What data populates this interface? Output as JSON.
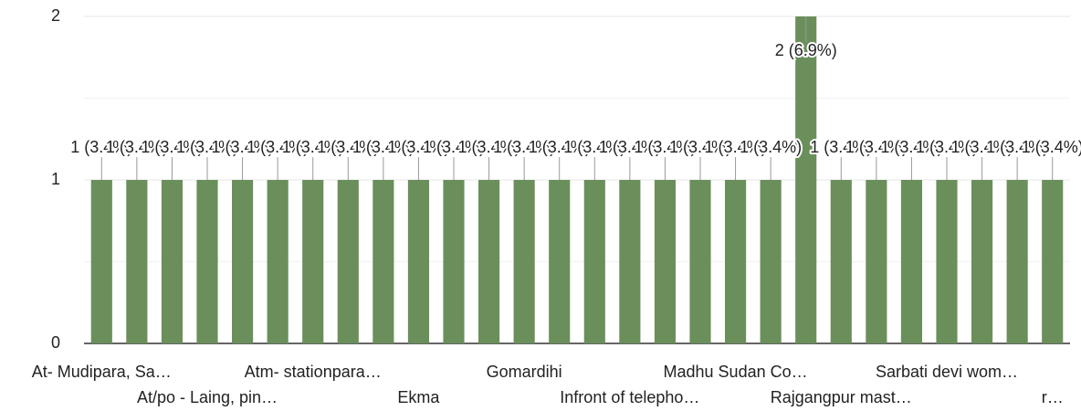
{
  "chart_data": {
    "type": "bar",
    "categories": [
      "At- Mudipara, Sa…",
      null,
      null,
      "At/po - Laing, pin…",
      null,
      null,
      "Atm- stationpara…",
      null,
      null,
      "Ekma",
      null,
      null,
      "Gomardihi",
      null,
      null,
      "Infront of telepho…",
      null,
      null,
      "Madhu Sudan Co…",
      null,
      null,
      "Rajgangpur mast…",
      null,
      null,
      "Sarbati devi wom…",
      null,
      null,
      "r…"
    ],
    "values": [
      1,
      1,
      1,
      1,
      1,
      1,
      1,
      1,
      1,
      1,
      1,
      1,
      1,
      1,
      1,
      1,
      1,
      1,
      1,
      1,
      2,
      1,
      1,
      1,
      1,
      1,
      1,
      1
    ],
    "value_labels": [
      "1 (3.4%)",
      "1 (3.4%)",
      "1 (3.4%)",
      "1 (3.4%)",
      "1 (3.4%)",
      "1 (3.4%)",
      "1 (3.4%)",
      "1 (3.4%)",
      "1 (3.4%)",
      "1 (3.4%)",
      "1 (3.4%)",
      "1 (3.4%)",
      "1 (3.4%)",
      "1 (3.4%)",
      "1 (3.4%)",
      "1 (3.4%)",
      "1 (3.4%)",
      "1 (3.4%)",
      "1 (3.4%)",
      "1 (3.4%)",
      "2 (6.9%)",
      "1 (3.4%)",
      "1 (3.4%)",
      "1 (3.4%)",
      "1 (3.4%)",
      "1 (3.4%)",
      "1 (3.4%)",
      "1 (3.4%)"
    ],
    "color": "#6a8f5b",
    "ylim": [
      0,
      2
    ],
    "yticks": [
      0,
      1,
      2
    ],
    "grid": true
  }
}
